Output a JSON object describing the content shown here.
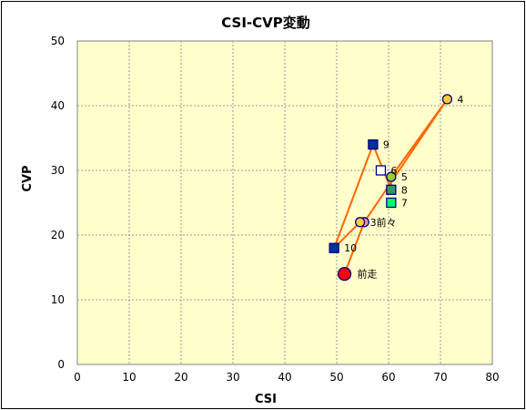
{
  "chart_data": {
    "type": "scatter",
    "title": "CSI-CVP変動",
    "xlabel": "CSI",
    "ylabel": "CVP",
    "xlim": [
      0,
      80
    ],
    "ylim": [
      0,
      50
    ],
    "xticks": [
      0,
      10,
      20,
      30,
      40,
      50,
      60,
      70,
      80
    ],
    "yticks": [
      0,
      10,
      20,
      30,
      40,
      50
    ],
    "grid": true,
    "plot_background": "#ffffcc",
    "line_color": "#ff6600",
    "points": [
      {
        "label": "前走",
        "x": 51.5,
        "y": 14,
        "marker": "circle-large",
        "color": "#ff0000"
      },
      {
        "label": "",
        "x": 55.3,
        "y": 22,
        "marker": "circle",
        "color": "#ff9999"
      },
      {
        "label": "3前々",
        "x": 54.5,
        "y": 22,
        "marker": "circle",
        "color": "#ffcc33"
      },
      {
        "label": "4",
        "x": 71.3,
        "y": 41,
        "marker": "circle",
        "color": "#ffcc33"
      },
      {
        "label": "5",
        "x": 60.5,
        "y": 29,
        "marker": "circle",
        "color": "#99cc33"
      },
      {
        "label": "6",
        "x": 58.5,
        "y": 30,
        "marker": "square",
        "color": "#ffffff"
      },
      {
        "label": "7",
        "x": 60.5,
        "y": 25,
        "marker": "square",
        "color": "#00ff66"
      },
      {
        "label": "8",
        "x": 60.5,
        "y": 27,
        "marker": "square",
        "color": "#339966"
      },
      {
        "label": "9",
        "x": 57,
        "y": 34,
        "marker": "square",
        "color": "#003399"
      },
      {
        "label": "10",
        "x": 49.5,
        "y": 18,
        "marker": "square",
        "color": "#003399"
      }
    ],
    "path_order": [
      "前走",
      "",
      "4",
      "5",
      "8",
      "9",
      "10",
      "3前々"
    ]
  }
}
